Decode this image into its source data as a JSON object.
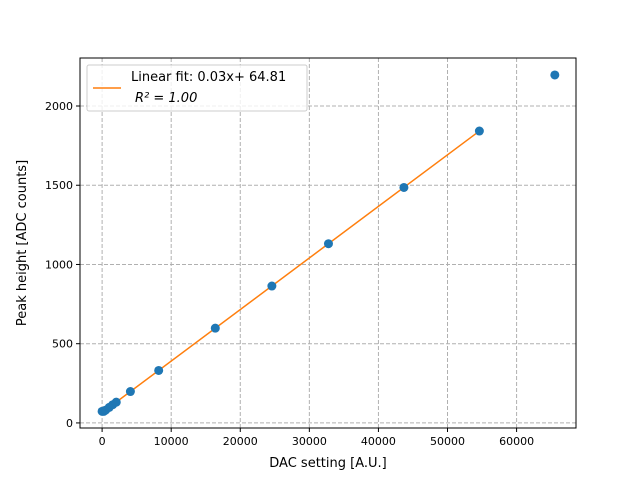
{
  "chart_data": {
    "type": "scatter",
    "xlabel": "DAC setting [A.U.]",
    "ylabel": "Peak height [ADC counts]",
    "xlim": [
      -3200,
      68600
    ],
    "ylim": [
      -32,
      2303
    ],
    "xticks": [
      0,
      10000,
      20000,
      30000,
      40000,
      50000,
      60000
    ],
    "yticks": [
      0,
      500,
      1000,
      1500,
      2000
    ],
    "grid": true,
    "legend_placement": "upper-left",
    "series": [
      {
        "kind": "points",
        "color": "#1f77b4",
        "x": [
          0,
          256,
          512,
          1024,
          1536,
          2048,
          4096,
          8192,
          16384,
          24576,
          32768,
          43690,
          54613,
          65535
        ],
        "y": [
          73,
          73,
          81,
          98,
          115,
          131,
          198,
          331,
          598,
          864,
          1131,
          1486,
          1842,
          2196
        ]
      },
      {
        "kind": "line",
        "name": "Linear fit: 0.03x+ 64.81",
        "name_line2": "R² = 1.00",
        "color": "#ff7f0e",
        "x": [
          0,
          54613
        ],
        "y": [
          64.81,
          1842
        ]
      }
    ]
  }
}
